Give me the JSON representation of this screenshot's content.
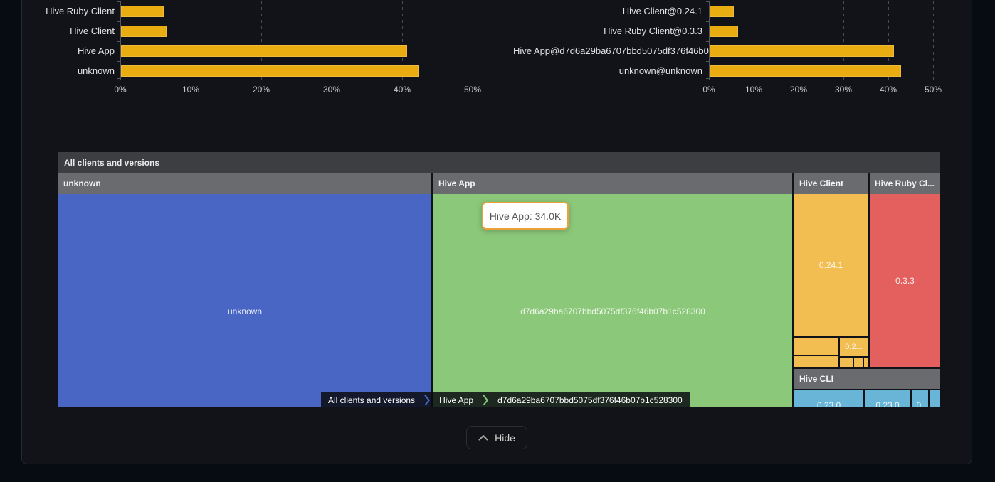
{
  "chart_data": [
    {
      "type": "bar",
      "orientation": "horizontal",
      "title": "",
      "categories": [
        "Hive Ruby Client",
        "Hive Client",
        "Hive App",
        "unknown"
      ],
      "values": [
        6.1,
        6.5,
        40.6,
        42.3
      ],
      "unit": "%",
      "xlabel": "",
      "ylabel": "",
      "x_ticks": [
        "0%",
        "10%",
        "20%",
        "30%",
        "40%",
        "50%"
      ],
      "xlim": [
        0,
        53
      ],
      "grid": "vertical-dashed",
      "bar_color": "#E9AC11",
      "note": "top of chart clipped by viewport edge"
    },
    {
      "type": "bar",
      "orientation": "horizontal",
      "title": "",
      "categories": [
        "Hive Client@0.24.1",
        "Hive Ruby Client@0.3.3",
        "Hive App@d7d6a29ba6707bbd5075df376f46b07b",
        "unknown@unknown"
      ],
      "values": [
        5.4,
        6.3,
        40.8,
        42.4
      ],
      "unit": "%",
      "xlabel": "",
      "ylabel": "",
      "x_ticks": [
        "0%",
        "10%",
        "20%",
        "30%",
        "40%",
        "50%"
      ],
      "xlim": [
        0,
        55
      ],
      "grid": "vertical-dashed",
      "bar_color": "#E9AC11",
      "note": "top of chart clipped by viewport edge"
    },
    {
      "type": "treemap",
      "title": "All clients and versions",
      "legend_position": "none",
      "nodes": [
        {
          "name": "unknown",
          "color": "#4A66C4",
          "children": [
            {
              "name": "unknown"
            }
          ]
        },
        {
          "name": "Hive App",
          "color": "#8CC87A",
          "value": "34.0K",
          "children": [
            {
              "name": "d7d6a29ba6707bbd5075df376f46b07b1c528300"
            }
          ]
        },
        {
          "name": "Hive Client",
          "color": "#F2BD51",
          "children": [
            {
              "name": "0.24.1"
            },
            {
              "name": ""
            },
            {
              "name": "0.2..."
            },
            {
              "name": ""
            },
            {
              "name": ""
            },
            {
              "name": ""
            },
            {
              "name": ""
            }
          ]
        },
        {
          "name": "Hive Ruby Cl...",
          "color": "#E4605F",
          "children": [
            {
              "name": "0.3.3"
            }
          ]
        },
        {
          "name": "Hive CLI",
          "color": "#68B5D8",
          "children": [
            {
              "name": "0.23.0"
            },
            {
              "name": "0.23.0"
            },
            {
              "name": "0."
            },
            {
              "name": ""
            }
          ]
        }
      ]
    }
  ],
  "tooltip": {
    "text": "Hive App: 34.0K"
  },
  "breadcrumb": {
    "items": [
      "All clients and versions",
      "Hive App",
      "d7d6a29ba6707bbd5075df376f46b07b1c528300"
    ],
    "separator_colors": [
      "#4A66C4",
      "#8CC87A"
    ]
  },
  "footer": {
    "hide_label": "Hide"
  },
  "colors": {
    "page_bg": "#070B12",
    "card_bg": "#111318",
    "bar": "#E9AC11",
    "treemap_title_bg": "#3D3E42",
    "treemap_header_bg": "#696B6E",
    "tooltip_border": "#E9A23B"
  }
}
